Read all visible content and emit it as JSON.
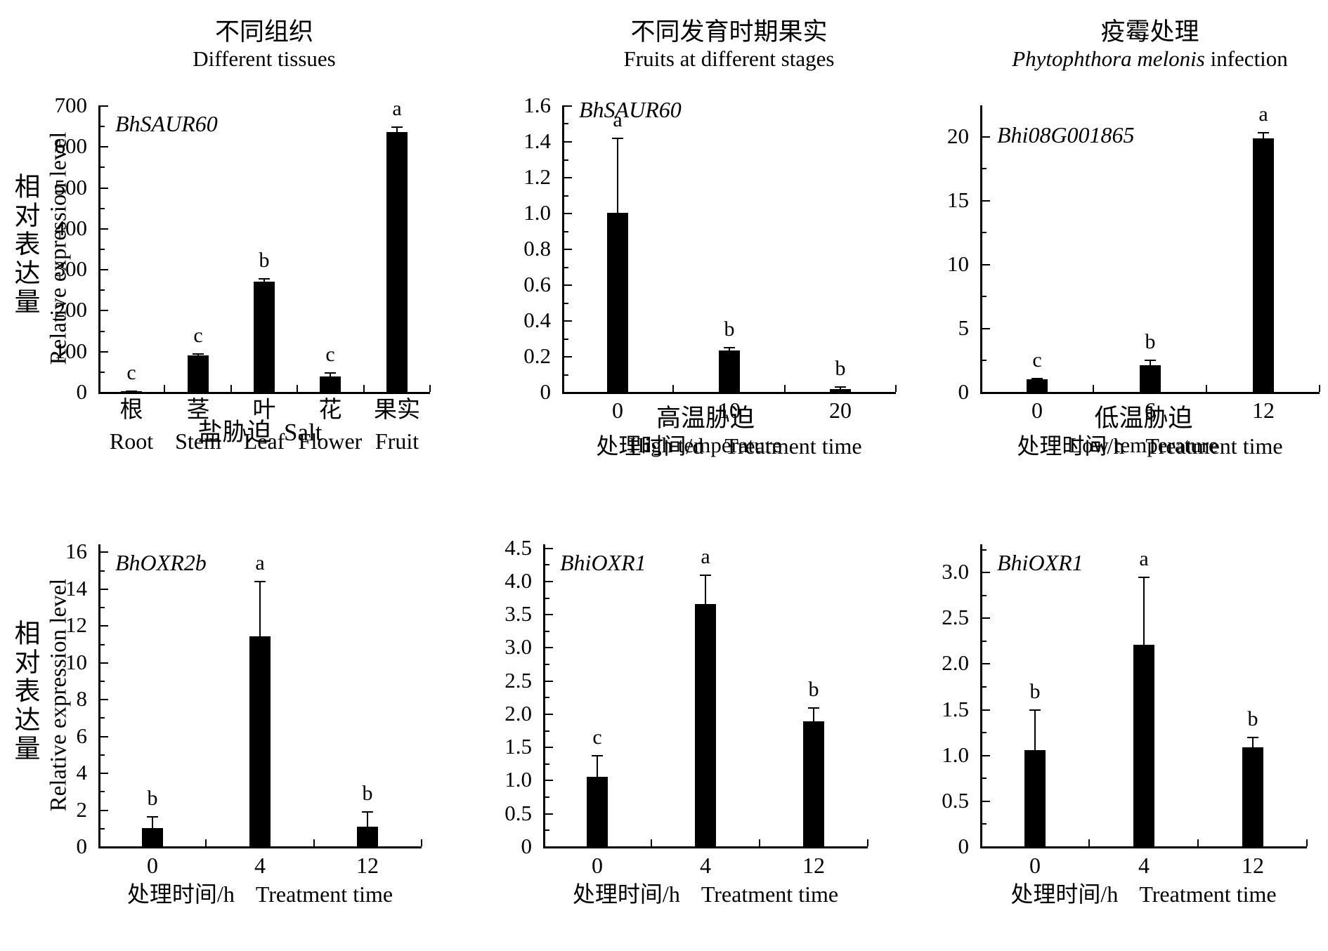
{
  "figure": {
    "ylabel_zh": "相对表达量",
    "ylabel_en": "Relative expression level",
    "background": "#ffffff",
    "bar_color": "#000000",
    "axis_color": "#000000"
  },
  "chart_data": [
    {
      "type": "bar",
      "key": "different-tissues",
      "title_zh": "不同组织",
      "title_en": {
        "italic": null,
        "text": "Different tissues"
      },
      "single_line_title": false,
      "gene": "BhSAUR60",
      "categories": [
        "根",
        "茎",
        "叶",
        "花",
        "果实"
      ],
      "categories_en": [
        "Root",
        "Stem",
        "Leaf",
        "Flower",
        "Fruit"
      ],
      "values": [
        2,
        90,
        270,
        38,
        635
      ],
      "errors": [
        1,
        5,
        8,
        10,
        13
      ],
      "letters": [
        "c",
        "c",
        "b",
        "c",
        "a"
      ],
      "ylim": [
        0,
        700
      ],
      "ymax_axis": 700,
      "ytick_vals": [
        0,
        100,
        200,
        300,
        400,
        500,
        600,
        700
      ],
      "ytick_labels": [
        "0",
        "100",
        "200",
        "300",
        "400",
        "500",
        "600",
        "700"
      ],
      "minor_step": 50,
      "xlabel_zh": null,
      "xlabel_en": null
    },
    {
      "type": "bar",
      "key": "fruit-stages",
      "title_zh": "不同发育时期果实",
      "title_en": {
        "italic": null,
        "text": "Fruits at different stages"
      },
      "single_line_title": false,
      "gene": "BhSAUR60",
      "categories": [
        "0",
        "10",
        "20"
      ],
      "categories_en": null,
      "values": [
        1.0,
        0.23,
        0.015
      ],
      "errors": [
        0.42,
        0.02,
        0.015
      ],
      "letters": [
        "a",
        "b",
        "b"
      ],
      "ylim": [
        0,
        1.6
      ],
      "ymax_axis": 1.6,
      "ytick_vals": [
        0,
        0.2,
        0.4,
        0.6,
        0.8,
        1.0,
        1.2,
        1.4,
        1.6
      ],
      "ytick_labels": [
        "0",
        "0.2",
        "0.4",
        "0.6",
        "0.8",
        "1.0",
        "1.2",
        "1.4",
        "1.6"
      ],
      "minor_step": 0.1,
      "xlabel_zh": "处理时间/d",
      "xlabel_en": "Treatment time"
    },
    {
      "type": "bar",
      "key": "phytophthora-infection",
      "title_zh": "疫霉处理",
      "title_en": {
        "italic": "Phytophthora melonis",
        "text": "infection"
      },
      "single_line_title": false,
      "gene": "Bhi08G001865",
      "categories": [
        "0",
        "6",
        "12"
      ],
      "categories_en": null,
      "values": [
        1.0,
        2.1,
        19.8
      ],
      "errors": [
        0.12,
        0.45,
        0.5
      ],
      "letters": [
        "c",
        "b",
        "a"
      ],
      "ylim": [
        0,
        20
      ],
      "ymax_axis": 22.4,
      "ytick_vals": [
        0,
        5,
        10,
        15,
        20
      ],
      "ytick_labels": [
        "0",
        "5",
        "10",
        "15",
        "20"
      ],
      "minor_step": 2.5,
      "xlabel_zh": "处理时间/h",
      "xlabel_en": "Treatment time"
    },
    {
      "type": "bar",
      "key": "salt-stress",
      "title_zh": "盐胁迫",
      "title_en": {
        "italic": null,
        "text": "Salt"
      },
      "single_line_title": true,
      "gene": "BhOXR2b",
      "categories": [
        "0",
        "4",
        "12"
      ],
      "categories_en": null,
      "values": [
        1.0,
        11.4,
        1.05
      ],
      "errors": [
        0.65,
        3.0,
        0.85
      ],
      "letters": [
        "b",
        "a",
        "b"
      ],
      "ylim": [
        0,
        16
      ],
      "ymax_axis": 16.4,
      "ytick_vals": [
        0,
        2,
        4,
        6,
        8,
        10,
        12,
        14,
        16
      ],
      "ytick_labels": [
        "0",
        "2",
        "4",
        "6",
        "8",
        "10",
        "12",
        "14",
        "16"
      ],
      "minor_step": 1,
      "xlabel_zh": "处理时间/h",
      "xlabel_en": "Treatment time"
    },
    {
      "type": "bar",
      "key": "high-temperature",
      "title_zh": "高温胁迫",
      "title_en": {
        "italic": null,
        "text": "High temperature"
      },
      "single_line_title": false,
      "gene": "BhiOXR1",
      "categories": [
        "0",
        "4",
        "12"
      ],
      "categories_en": null,
      "values": [
        1.05,
        3.65,
        1.88
      ],
      "errors": [
        0.33,
        0.45,
        0.22
      ],
      "letters": [
        "c",
        "a",
        "b"
      ],
      "ylim": [
        0,
        4.5
      ],
      "ymax_axis": 4.55,
      "ytick_vals": [
        0,
        0.5,
        1.0,
        1.5,
        2.0,
        2.5,
        3.0,
        3.5,
        4.0,
        4.5
      ],
      "ytick_labels": [
        "0",
        "0.5",
        "1.0",
        "1.5",
        "2.0",
        "2.5",
        "3.0",
        "3.5",
        "4.0",
        "4.5"
      ],
      "minor_step": 0.25,
      "xlabel_zh": "处理时间/h",
      "xlabel_en": "Treatment time"
    },
    {
      "type": "bar",
      "key": "low-temperature",
      "title_zh": "低温胁迫",
      "title_en": {
        "italic": null,
        "text": "Low temperature"
      },
      "single_line_title": false,
      "gene": "BhiOXR1",
      "categories": [
        "0",
        "4",
        "12"
      ],
      "categories_en": null,
      "values": [
        1.05,
        2.2,
        1.08
      ],
      "errors": [
        0.45,
        0.75,
        0.12
      ],
      "letters": [
        "b",
        "a",
        "b"
      ],
      "ylim": [
        0,
        3.0
      ],
      "ymax_axis": 3.3,
      "ytick_vals": [
        0,
        0.5,
        1.0,
        1.5,
        2.0,
        2.5,
        3.0
      ],
      "ytick_labels": [
        "0",
        "0.5",
        "1.0",
        "1.5",
        "2.0",
        "2.5",
        "3.0"
      ],
      "minor_step": 0.25,
      "xlabel_zh": "处理时间/h",
      "xlabel_en": "Treatment time"
    }
  ]
}
